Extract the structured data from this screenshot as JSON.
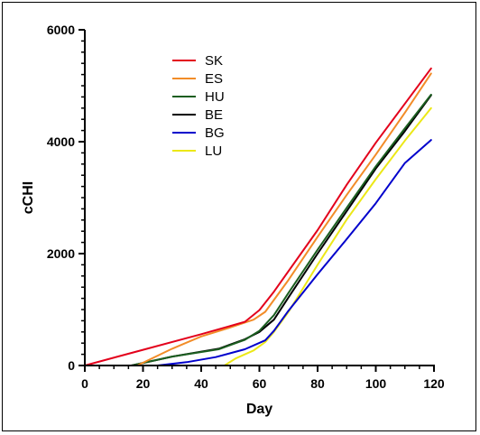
{
  "chart_data": {
    "type": "line",
    "title": "",
    "xlabel": "Day",
    "ylabel": "cCHI",
    "xlim": [
      0,
      120
    ],
    "ylim": [
      0,
      6000
    ],
    "x_ticks": [
      0,
      20,
      40,
      60,
      80,
      100,
      120
    ],
    "y_ticks": [
      0,
      2000,
      4000,
      6000
    ],
    "grid": false,
    "legend_position": "top-center",
    "series": [
      {
        "name": "SK",
        "color": "#e3001b",
        "x": [
          0,
          20,
          40,
          55,
          60,
          65,
          80,
          90,
          100,
          110,
          119
        ],
        "y": [
          0,
          280,
          560,
          780,
          990,
          1320,
          2420,
          3230,
          3980,
          4680,
          5310
        ]
      },
      {
        "name": "ES",
        "color": "#f28c28",
        "x": [
          0,
          18,
          30,
          40,
          50,
          58,
          62,
          70,
          80,
          90,
          100,
          110,
          119
        ],
        "y": [
          0,
          0,
          300,
          520,
          680,
          820,
          960,
          1530,
          2300,
          3050,
          3770,
          4520,
          5220
        ]
      },
      {
        "name": "HU",
        "color": "#1b5e20",
        "x": [
          0,
          16,
          30,
          46,
          55,
          60,
          65,
          70,
          80,
          90,
          100,
          110,
          119
        ],
        "y": [
          0,
          0,
          160,
          290,
          460,
          620,
          900,
          1300,
          2070,
          2820,
          3560,
          4240,
          4840
        ]
      },
      {
        "name": "BE",
        "color": "#000000",
        "x": [
          0,
          16,
          30,
          46,
          55,
          60,
          65,
          70,
          80,
          90,
          100,
          110,
          119
        ],
        "y": [
          0,
          0,
          160,
          300,
          470,
          600,
          820,
          1220,
          2000,
          2760,
          3520,
          4190,
          4830
        ]
      },
      {
        "name": "BG",
        "color": "#0000cc",
        "x": [
          0,
          25,
          35,
          45,
          55,
          62,
          65,
          70,
          80,
          90,
          100,
          110,
          119
        ],
        "y": [
          0,
          0,
          60,
          150,
          290,
          450,
          620,
          980,
          1630,
          2260,
          2900,
          3620,
          4030
        ]
      },
      {
        "name": "LU",
        "color": "#ece817",
        "x": [
          0,
          48,
          52,
          58,
          62,
          65,
          70,
          80,
          90,
          100,
          110,
          119
        ],
        "y": [
          0,
          0,
          130,
          270,
          420,
          600,
          960,
          1800,
          2610,
          3330,
          4020,
          4600
        ]
      }
    ]
  }
}
